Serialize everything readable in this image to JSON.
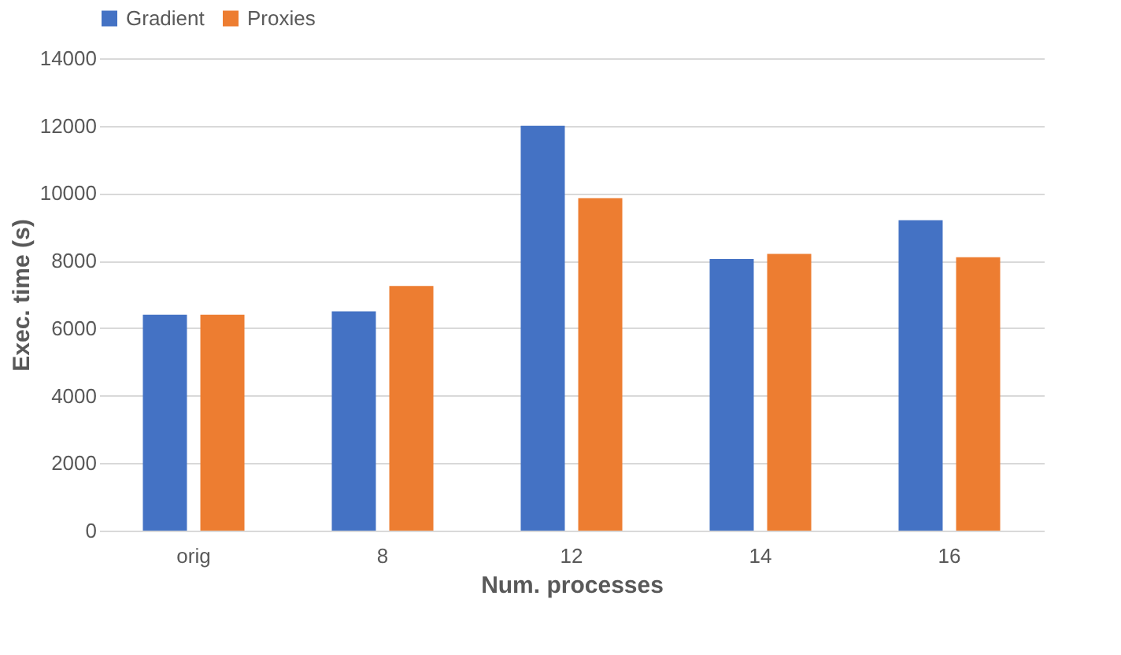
{
  "chart_data": {
    "type": "bar",
    "xlabel": "Num. processes",
    "ylabel": "Exec. time (s)",
    "categories": [
      "orig",
      "8",
      "12",
      "14",
      "16"
    ],
    "series": [
      {
        "name": "Gradient",
        "color": "#4472c4",
        "values": [
          6400,
          6500,
          12000,
          8050,
          9200
        ]
      },
      {
        "name": "Proxies",
        "color": "#ed7d31",
        "values": [
          6400,
          7250,
          9850,
          8200,
          8100
        ]
      }
    ],
    "ylim": [
      0,
      14000
    ],
    "yticks": [
      0,
      2000,
      4000,
      6000,
      8000,
      10000,
      12000,
      14000
    ],
    "grid": "y",
    "legend": "top"
  }
}
